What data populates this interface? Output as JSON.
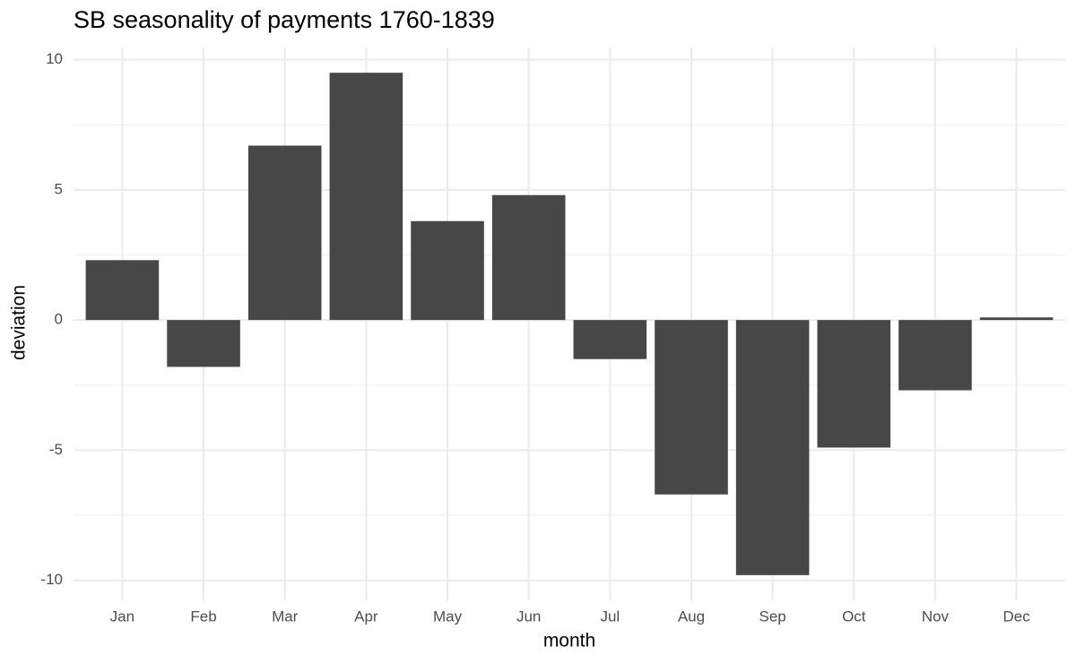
{
  "chart_data": {
    "type": "bar",
    "title": "SB seasonality of payments 1760-1839",
    "x_label": "month",
    "y_label": "deviation",
    "categories": [
      "Jan",
      "Feb",
      "Mar",
      "Apr",
      "May",
      "Jun",
      "Jul",
      "Aug",
      "Sep",
      "Oct",
      "Nov",
      "Dec"
    ],
    "values": [
      2.3,
      -1.8,
      6.7,
      9.5,
      3.8,
      4.8,
      -1.5,
      -6.7,
      -9.8,
      -4.9,
      -2.7,
      0.1
    ],
    "color": "#474747",
    "ylim": [
      -10.77,
      10.47
    ],
    "yticks": [
      -10,
      -5,
      0,
      5,
      10
    ],
    "grid": true
  }
}
